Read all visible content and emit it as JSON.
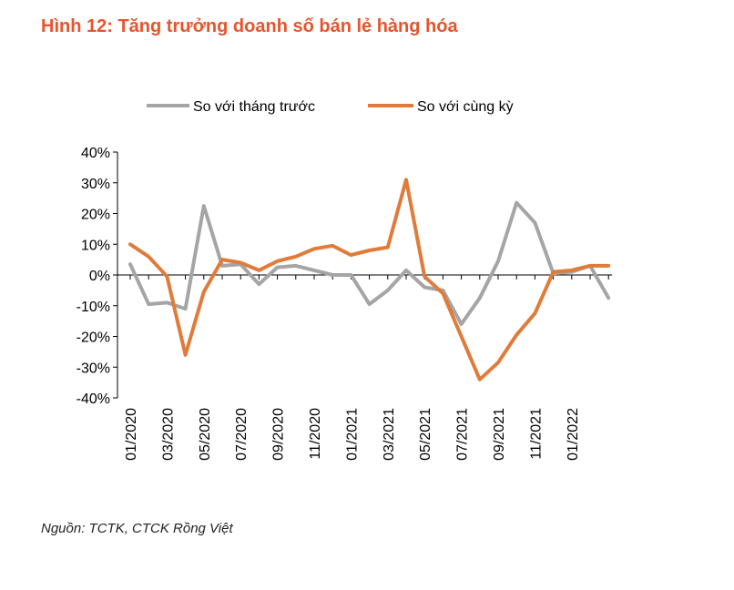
{
  "header": {
    "title": "Hình 12: Tăng trưởng doanh số bán lẻ hàng hóa"
  },
  "footer": {
    "source": "Nguồn:  TCTK, CTCK Rồng Việt"
  },
  "colors": {
    "mom": "#a5a5a5",
    "yoy": "#e07b39",
    "title": "#e8542c"
  },
  "chart_data": {
    "type": "line",
    "title": "",
    "xlabel": "",
    "ylabel": "",
    "ylim": [
      -40,
      40
    ],
    "y_ticks": [
      "40%",
      "30%",
      "20%",
      "10%",
      "0%",
      "-10%",
      "-20%",
      "-30%",
      "-40%"
    ],
    "y_tick_values": [
      40,
      30,
      20,
      10,
      0,
      -10,
      -20,
      -30,
      -40
    ],
    "x": [
      "01/2020",
      "02/2020",
      "03/2020",
      "04/2020",
      "05/2020",
      "06/2020",
      "07/2020",
      "08/2020",
      "09/2020",
      "10/2020",
      "11/2020",
      "12/2020",
      "01/2021",
      "02/2021",
      "03/2021",
      "04/2021",
      "05/2021",
      "06/2021",
      "07/2021",
      "08/2021",
      "09/2021",
      "10/2021",
      "11/2021",
      "12/2021",
      "01/2022",
      "02/2022",
      "03/2022"
    ],
    "x_tick_labels": [
      "01/2020",
      "03/2020",
      "05/2020",
      "07/2020",
      "09/2020",
      "11/2020",
      "01/2021",
      "03/2021",
      "05/2021",
      "07/2021",
      "09/2021",
      "11/2021",
      "01/2022"
    ],
    "x_tick_indices": [
      0,
      2,
      4,
      6,
      8,
      10,
      12,
      14,
      16,
      18,
      20,
      22,
      24
    ],
    "legend_position": "top",
    "series": [
      {
        "name": "So với tháng trước",
        "values": [
          3.5,
          -9.5,
          -9,
          -11,
          22.5,
          3,
          3.5,
          -3,
          2.5,
          3,
          1.5,
          0,
          0,
          -9.5,
          -5,
          1.5,
          -4,
          -5,
          -16,
          -7.5,
          4.5,
          23.5,
          17,
          0.5,
          1,
          3,
          -7.5
        ]
      },
      {
        "name": "So với cùng kỳ",
        "values": [
          10,
          6,
          -0.5,
          -26,
          -5.5,
          5,
          4,
          1.5,
          4.5,
          6,
          8.5,
          9.5,
          6.5,
          8,
          9,
          31,
          -0.5,
          -6,
          -20,
          -34,
          -28.5,
          -19.5,
          -12.5,
          1,
          1.5,
          3,
          3
        ]
      }
    ]
  }
}
